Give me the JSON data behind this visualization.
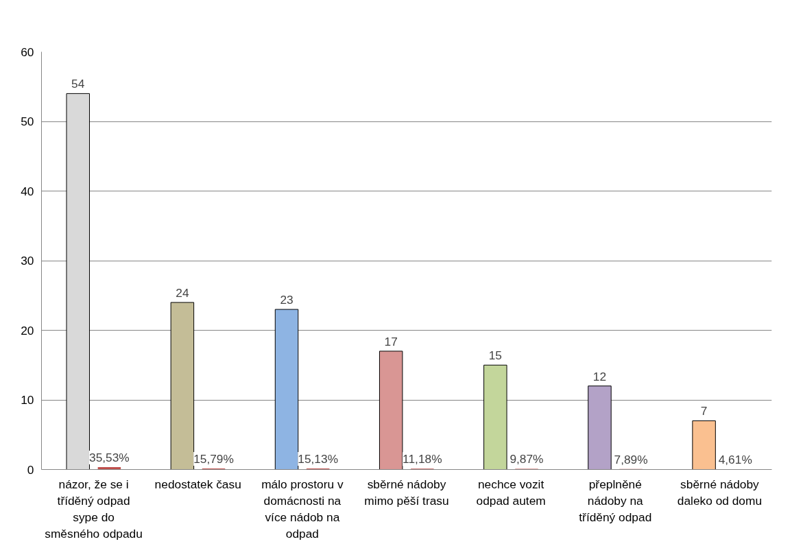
{
  "chart_data": {
    "type": "bar",
    "categories": [
      "názor, že se i tříděný odpad sype do směsného odpadu",
      "nedostatek času",
      "málo prostoru v domácnosti na více nádob na odpad",
      "sběrné nádoby mimo pěší trasu",
      "nechce vozit odpad autem",
      "přeplněné nádoby na tříděný odpad",
      "sběrné nádoby daleko od domu"
    ],
    "series": [
      {
        "colors": [
          "#d9d9d9",
          "#c4bd97",
          "#8eb4e3",
          "#d99694",
          "#c3d69b",
          "#b3a2c7",
          "#fac090"
        ],
        "values": [
          54,
          24,
          23,
          17,
          15,
          12,
          7
        ],
        "value_labels": [
          "54",
          "24",
          "23",
          "17",
          "15",
          "12",
          "7"
        ]
      },
      {
        "color": "#c0504d",
        "values": [
          0.3553,
          0.1579,
          0.1513,
          0.1118,
          0.0987,
          0.0789,
          0.0461
        ],
        "value_labels": [
          "35,53%",
          "15,79%",
          "15,13%",
          "11,18%",
          "9,87%",
          "7,89%",
          "4,61%"
        ]
      }
    ],
    "ylim": [
      0,
      60
    ],
    "yticks": [
      0,
      10,
      20,
      30,
      40,
      50,
      60
    ],
    "grid": "y"
  }
}
